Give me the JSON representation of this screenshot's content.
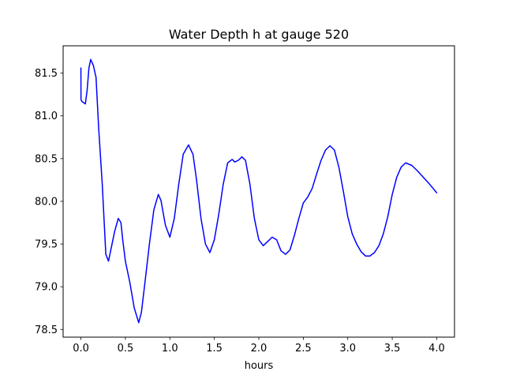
{
  "chart_data": {
    "type": "line",
    "title": "Water Depth h at gauge 520",
    "xlabel": "hours",
    "ylabel": "",
    "xlim": [
      -0.2,
      4.2
    ],
    "ylim": [
      78.41,
      81.82
    ],
    "xticks": [
      {
        "value": 0.0,
        "label": "0.0"
      },
      {
        "value": 0.5,
        "label": "0.5"
      },
      {
        "value": 1.0,
        "label": "1.0"
      },
      {
        "value": 1.5,
        "label": "1.5"
      },
      {
        "value": 2.0,
        "label": "2.0"
      },
      {
        "value": 2.5,
        "label": "2.5"
      },
      {
        "value": 3.0,
        "label": "3.0"
      },
      {
        "value": 3.5,
        "label": "3.5"
      },
      {
        "value": 4.0,
        "label": "4.0"
      }
    ],
    "yticks": [
      {
        "value": 78.5,
        "label": "78.5"
      },
      {
        "value": 79.0,
        "label": "79.0"
      },
      {
        "value": 79.5,
        "label": "79.5"
      },
      {
        "value": 80.0,
        "label": "80.0"
      },
      {
        "value": 80.5,
        "label": "80.5"
      },
      {
        "value": 81.0,
        "label": "81.0"
      },
      {
        "value": 81.5,
        "label": "81.5"
      }
    ],
    "grid": false,
    "legend": "none",
    "series": [
      {
        "color": "#0000ff",
        "x": [
          0.0,
          0.001,
          0.01,
          0.05,
          0.07,
          0.09,
          0.11,
          0.14,
          0.17,
          0.2,
          0.24,
          0.28,
          0.31,
          0.34,
          0.38,
          0.42,
          0.45,
          0.47,
          0.5,
          0.55,
          0.6,
          0.65,
          0.68,
          0.72,
          0.77,
          0.82,
          0.87,
          0.9,
          0.95,
          1.0,
          1.05,
          1.1,
          1.15,
          1.21,
          1.26,
          1.3,
          1.35,
          1.4,
          1.45,
          1.5,
          1.55,
          1.6,
          1.65,
          1.7,
          1.73,
          1.77,
          1.81,
          1.85,
          1.9,
          1.95,
          2.0,
          2.05,
          2.1,
          2.15,
          2.2,
          2.25,
          2.3,
          2.35,
          2.4,
          2.45,
          2.5,
          2.55,
          2.6,
          2.65,
          2.7,
          2.75,
          2.8,
          2.85,
          2.9,
          2.95,
          3.0,
          3.05,
          3.1,
          3.15,
          3.2,
          3.25,
          3.3,
          3.35,
          3.4,
          3.45,
          3.5,
          3.55,
          3.6,
          3.65,
          3.72,
          3.78,
          3.85,
          3.92,
          4.0
        ],
        "y": [
          81.56,
          81.19,
          81.17,
          81.14,
          81.3,
          81.56,
          81.66,
          81.59,
          81.45,
          80.85,
          80.2,
          79.38,
          79.3,
          79.45,
          79.65,
          79.8,
          79.75,
          79.55,
          79.3,
          79.05,
          78.75,
          78.58,
          78.7,
          79.05,
          79.5,
          79.9,
          80.08,
          80.01,
          79.72,
          79.58,
          79.8,
          80.2,
          80.55,
          80.66,
          80.55,
          80.25,
          79.8,
          79.5,
          79.4,
          79.55,
          79.85,
          80.2,
          80.45,
          80.49,
          80.46,
          80.48,
          80.52,
          80.48,
          80.2,
          79.8,
          79.55,
          79.48,
          79.53,
          79.58,
          79.55,
          79.42,
          79.38,
          79.43,
          79.6,
          79.8,
          79.98,
          80.05,
          80.15,
          80.32,
          80.48,
          80.6,
          80.65,
          80.6,
          80.4,
          80.12,
          79.82,
          79.62,
          79.5,
          79.41,
          79.36,
          79.36,
          79.4,
          79.48,
          79.62,
          79.82,
          80.08,
          80.28,
          80.4,
          80.45,
          80.42,
          80.36,
          80.28,
          80.2,
          80.1
        ]
      }
    ]
  }
}
